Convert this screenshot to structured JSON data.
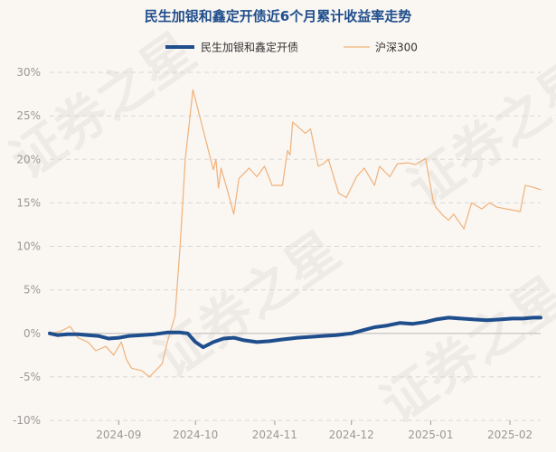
{
  "chart_data": {
    "type": "line",
    "title": "民生加银和鑫定开债近6个月累计收益率走势",
    "xlabel": "",
    "ylabel": "",
    "ylim": [
      -10,
      30
    ],
    "y_ticks": [
      "-10%",
      "-5%",
      "0%",
      "5%",
      "10%",
      "15%",
      "20%",
      "25%",
      "30%"
    ],
    "y_tick_values": [
      -10,
      -5,
      0,
      5,
      10,
      15,
      20,
      25,
      30
    ],
    "x_range": [
      "2024-08-05",
      "2025-02-13"
    ],
    "x_ticks": [
      {
        "label": "2024-09",
        "date": "2024-09-01"
      },
      {
        "label": "2024-10",
        "date": "2024-10-01"
      },
      {
        "label": "2024-11",
        "date": "2024-11-01"
      },
      {
        "label": "2024-12",
        "date": "2024-12-01"
      },
      {
        "label": "2025-01",
        "date": "2025-01-01"
      },
      {
        "label": "2025-02",
        "date": "2025-02-01"
      }
    ],
    "grid": true,
    "legend_position": "top-center",
    "series": [
      {
        "name": "民生加银和鑫定开债",
        "color": "#1f4e8c",
        "x": [
          "2024-08-05",
          "2024-08-08",
          "2024-08-12",
          "2024-08-16",
          "2024-08-20",
          "2024-08-24",
          "2024-08-28",
          "2024-09-01",
          "2024-09-05",
          "2024-09-10",
          "2024-09-15",
          "2024-09-20",
          "2024-09-25",
          "2024-09-28",
          "2024-10-01",
          "2024-10-04",
          "2024-10-08",
          "2024-10-12",
          "2024-10-16",
          "2024-10-20",
          "2024-10-25",
          "2024-10-30",
          "2024-11-04",
          "2024-11-10",
          "2024-11-15",
          "2024-11-20",
          "2024-11-25",
          "2024-12-01",
          "2024-12-06",
          "2024-12-10",
          "2024-12-15",
          "2024-12-20",
          "2024-12-25",
          "2024-12-30",
          "2025-01-03",
          "2025-01-08",
          "2025-01-13",
          "2025-01-18",
          "2025-01-23",
          "2025-01-28",
          "2025-02-02",
          "2025-02-06",
          "2025-02-10",
          "2025-02-13"
        ],
        "y": [
          0.0,
          -0.2,
          -0.1,
          -0.1,
          -0.2,
          -0.3,
          -0.6,
          -0.5,
          -0.3,
          -0.2,
          -0.1,
          0.1,
          0.1,
          0.0,
          -1.0,
          -1.6,
          -1.0,
          -0.6,
          -0.5,
          -0.8,
          -1.0,
          -0.9,
          -0.7,
          -0.5,
          -0.4,
          -0.3,
          -0.2,
          0.0,
          0.4,
          0.7,
          0.9,
          1.2,
          1.1,
          1.3,
          1.6,
          1.8,
          1.7,
          1.6,
          1.5,
          1.6,
          1.7,
          1.7,
          1.8,
          1.8
        ]
      },
      {
        "name": "沪深300",
        "color": "#f0b27a",
        "x": [
          "2024-08-05",
          "2024-08-09",
          "2024-08-13",
          "2024-08-16",
          "2024-08-20",
          "2024-08-23",
          "2024-08-27",
          "2024-08-30",
          "2024-09-02",
          "2024-09-04",
          "2024-09-06",
          "2024-09-10",
          "2024-09-13",
          "2024-09-18",
          "2024-09-20",
          "2024-09-23",
          "2024-09-24",
          "2024-09-25",
          "2024-09-26",
          "2024-09-27",
          "2024-09-30",
          "2024-10-08",
          "2024-10-09",
          "2024-10-10",
          "2024-10-11",
          "2024-10-14",
          "2024-10-16",
          "2024-10-18",
          "2024-10-22",
          "2024-10-25",
          "2024-10-28",
          "2024-10-31",
          "2024-11-04",
          "2024-11-06",
          "2024-11-07",
          "2024-11-08",
          "2024-11-11",
          "2024-11-13",
          "2024-11-15",
          "2024-11-18",
          "2024-11-20",
          "2024-11-22",
          "2024-11-26",
          "2024-11-29",
          "2024-12-03",
          "2024-12-06",
          "2024-12-10",
          "2024-12-12",
          "2024-12-16",
          "2024-12-19",
          "2024-12-23",
          "2024-12-26",
          "2024-12-30",
          "2025-01-02",
          "2025-01-03",
          "2025-01-06",
          "2025-01-08",
          "2025-01-10",
          "2025-01-14",
          "2025-01-17",
          "2025-01-21",
          "2025-01-24",
          "2025-01-27",
          "2025-02-05",
          "2025-02-07",
          "2025-02-10",
          "2025-02-13"
        ],
        "y": [
          0.0,
          0.2,
          0.8,
          -0.5,
          -1.0,
          -2.0,
          -1.5,
          -2.5,
          -1.0,
          -3.0,
          -4.0,
          -4.3,
          -5.0,
          -3.5,
          -1.0,
          2.0,
          6.0,
          10.0,
          15.0,
          20.0,
          28.0,
          18.8,
          20.0,
          16.7,
          19.0,
          15.9,
          13.7,
          17.8,
          19.0,
          18.0,
          19.2,
          17.0,
          17.0,
          21.0,
          20.5,
          24.3,
          23.5,
          23.0,
          23.5,
          19.2,
          19.5,
          20.0,
          16.1,
          15.6,
          18.0,
          19.0,
          17.0,
          19.2,
          18.0,
          19.5,
          19.6,
          19.4,
          20.1,
          15.2,
          14.5,
          13.5,
          13.0,
          13.7,
          12.0,
          15.0,
          14.3,
          15.0,
          14.5,
          14.0,
          17.0,
          16.8,
          16.5
        ]
      }
    ]
  },
  "watermark_text": "证券之星"
}
